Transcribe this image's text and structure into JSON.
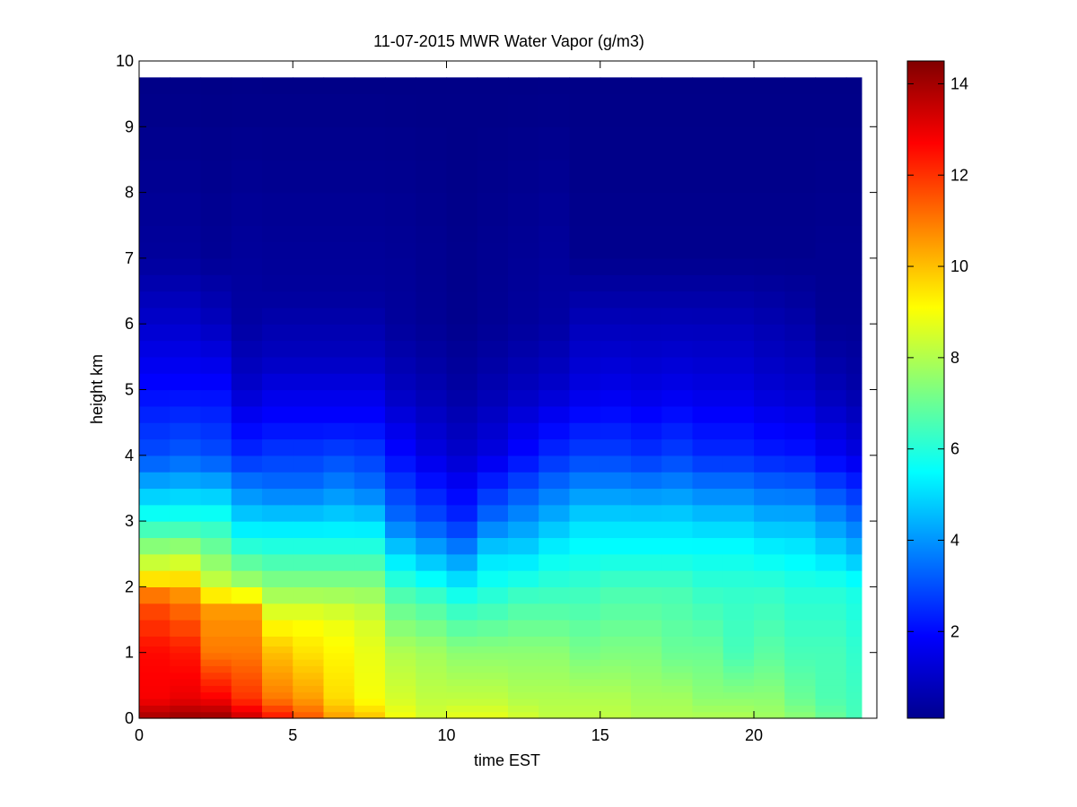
{
  "chart_data": {
    "type": "heatmap",
    "title": "11-07-2015 MWR Water Vapor (g/m3)",
    "xlabel": "time EST",
    "ylabel": "height km",
    "xlim": [
      0,
      24
    ],
    "ylim": [
      0,
      10
    ],
    "x_ticks": [
      0,
      5,
      10,
      15,
      20
    ],
    "y_ticks": [
      0,
      1,
      2,
      3,
      4,
      5,
      6,
      7,
      8,
      9,
      10
    ],
    "colorbar": {
      "range": [
        0.1,
        14.5
      ],
      "ticks": [
        2,
        4,
        6,
        8,
        10,
        12,
        14
      ],
      "colormap": "jet"
    },
    "grid": false,
    "x_bin_edges": [
      0,
      1,
      2,
      3,
      4,
      5,
      6,
      7,
      8,
      9,
      10,
      11,
      12,
      13,
      14,
      15,
      16,
      17,
      18,
      19,
      20,
      21,
      22,
      23,
      23.5
    ],
    "height_levels_km": [
      0,
      0.1,
      0.2,
      0.3,
      0.4,
      0.5,
      0.6,
      0.7,
      0.8,
      0.9,
      1.0,
      1.1,
      1.25,
      1.5,
      1.75,
      2.0,
      2.25,
      2.5,
      2.75,
      3.0,
      3.25,
      3.5,
      3.75,
      4.0,
      4.25,
      4.5,
      4.75,
      5.0,
      5.25,
      5.5,
      5.75,
      6.0,
      6.25,
      6.5,
      6.75,
      7.0,
      7.25,
      7.5,
      8.0,
      8.5,
      9.0,
      9.5,
      9.75
    ],
    "time_columns": [
      {
        "t": 0,
        "profile": [
          [
            0,
            14.0
          ],
          [
            0.3,
            12.8
          ],
          [
            1.0,
            12.6
          ],
          [
            1.8,
            11.5
          ],
          [
            2.2,
            9.0
          ],
          [
            3.0,
            6.0
          ],
          [
            4.0,
            3.0
          ],
          [
            5.0,
            2.0
          ],
          [
            6.0,
            1.2
          ],
          [
            7.0,
            0.5
          ],
          [
            9.75,
            0.2
          ]
        ]
      },
      {
        "t": 1,
        "profile": [
          [
            0,
            14.2
          ],
          [
            0.3,
            13.0
          ],
          [
            1.0,
            12.4
          ],
          [
            1.8,
            11.0
          ],
          [
            2.2,
            9.2
          ],
          [
            3.0,
            6.0
          ],
          [
            4.0,
            3.2
          ],
          [
            5.0,
            2.0
          ],
          [
            6.0,
            1.2
          ],
          [
            7.0,
            0.5
          ],
          [
            9.75,
            0.2
          ]
        ]
      },
      {
        "t": 2,
        "profile": [
          [
            0,
            14.2
          ],
          [
            0.3,
            12.8
          ],
          [
            1.0,
            11.0
          ],
          [
            1.7,
            10.5
          ],
          [
            2.0,
            8.5
          ],
          [
            3.0,
            6.0
          ],
          [
            4.0,
            3.0
          ],
          [
            5.0,
            2.0
          ],
          [
            6.0,
            1.0
          ],
          [
            7.0,
            0.4
          ],
          [
            9.75,
            0.2
          ]
        ]
      },
      {
        "t": 3,
        "profile": [
          [
            0,
            13.5
          ],
          [
            0.3,
            12.0
          ],
          [
            1.0,
            11.0
          ],
          [
            1.7,
            10.5
          ],
          [
            2.0,
            8.0
          ],
          [
            2.8,
            5.5
          ],
          [
            4.0,
            2.5
          ],
          [
            5.0,
            1.2
          ],
          [
            6.0,
            0.6
          ],
          [
            9.75,
            0.2
          ]
        ]
      },
      {
        "t": 4,
        "profile": [
          [
            0,
            12.5
          ],
          [
            0.3,
            11.0
          ],
          [
            1.0,
            10.0
          ],
          [
            1.5,
            9.0
          ],
          [
            2.0,
            7.5
          ],
          [
            2.8,
            5.5
          ],
          [
            3.5,
            3.5
          ],
          [
            4.5,
            2.0
          ],
          [
            5.5,
            1.0
          ],
          [
            6.5,
            0.5
          ],
          [
            9.75,
            0.2
          ]
        ]
      },
      {
        "t": 5,
        "profile": [
          [
            0,
            11.5
          ],
          [
            0.3,
            10.5
          ],
          [
            1.0,
            9.5
          ],
          [
            1.5,
            9.0
          ],
          [
            2.0,
            7.5
          ],
          [
            2.8,
            5.5
          ],
          [
            3.5,
            3.5
          ],
          [
            4.5,
            2.0
          ],
          [
            5.5,
            1.0
          ],
          [
            6.5,
            0.5
          ],
          [
            9.75,
            0.2
          ]
        ]
      },
      {
        "t": 6,
        "profile": [
          [
            0,
            10.5
          ],
          [
            0.3,
            9.6
          ],
          [
            1.0,
            9.2
          ],
          [
            1.5,
            8.8
          ],
          [
            2.0,
            7.5
          ],
          [
            2.8,
            5.5
          ],
          [
            3.5,
            3.8
          ],
          [
            4.5,
            2.0
          ],
          [
            5.5,
            1.0
          ],
          [
            6.5,
            0.5
          ],
          [
            9.75,
            0.2
          ]
        ]
      },
      {
        "t": 7,
        "profile": [
          [
            0,
            10.0
          ],
          [
            0.3,
            9.0
          ],
          [
            1.0,
            8.8
          ],
          [
            1.5,
            8.5
          ],
          [
            2.0,
            7.5
          ],
          [
            2.8,
            5.5
          ],
          [
            3.5,
            3.5
          ],
          [
            4.5,
            2.0
          ],
          [
            5.5,
            1.0
          ],
          [
            6.5,
            0.5
          ],
          [
            9.75,
            0.2
          ]
        ]
      },
      {
        "t": 8,
        "profile": [
          [
            0,
            9.0
          ],
          [
            0.3,
            8.5
          ],
          [
            1.0,
            8.0
          ],
          [
            1.8,
            6.8
          ],
          [
            2.5,
            5.0
          ],
          [
            3.0,
            3.5
          ],
          [
            4.0,
            2.0
          ],
          [
            5.0,
            1.0
          ],
          [
            6.0,
            0.5
          ],
          [
            9.75,
            0.2
          ]
        ]
      },
      {
        "t": 9,
        "profile": [
          [
            0,
            8.5
          ],
          [
            0.3,
            8.2
          ],
          [
            1.0,
            7.8
          ],
          [
            1.8,
            6.5
          ],
          [
            2.3,
            5.0
          ],
          [
            3.0,
            3.0
          ],
          [
            4.0,
            1.5
          ],
          [
            5.0,
            0.8
          ],
          [
            6.0,
            0.4
          ],
          [
            9.75,
            0.2
          ]
        ]
      },
      {
        "t": 10,
        "profile": [
          [
            0,
            8.8
          ],
          [
            0.3,
            8.2
          ],
          [
            1.0,
            7.5
          ],
          [
            1.8,
            6.0
          ],
          [
            2.3,
            4.5
          ],
          [
            3.0,
            2.5
          ],
          [
            4.0,
            1.2
          ],
          [
            5.0,
            0.6
          ],
          [
            6.0,
            0.3
          ],
          [
            9.75,
            0.2
          ]
        ]
      },
      {
        "t": 11,
        "profile": [
          [
            0,
            8.8
          ],
          [
            0.3,
            8.2
          ],
          [
            1.0,
            7.5
          ],
          [
            1.8,
            6.2
          ],
          [
            2.5,
            5.0
          ],
          [
            3.0,
            3.5
          ],
          [
            4.0,
            1.5
          ],
          [
            5.0,
            0.8
          ],
          [
            6.0,
            0.4
          ],
          [
            9.75,
            0.2
          ]
        ]
      },
      {
        "t": 12,
        "profile": [
          [
            0,
            8.5
          ],
          [
            0.3,
            8.0
          ],
          [
            1.0,
            7.5
          ],
          [
            1.8,
            6.5
          ],
          [
            2.5,
            5.0
          ],
          [
            3.0,
            4.0
          ],
          [
            4.0,
            2.0
          ],
          [
            5.0,
            1.0
          ],
          [
            6.0,
            0.5
          ],
          [
            9.75,
            0.2
          ]
        ]
      },
      {
        "t": 13,
        "profile": [
          [
            0,
            8.2
          ],
          [
            0.3,
            8.0
          ],
          [
            1.0,
            7.5
          ],
          [
            1.8,
            6.5
          ],
          [
            2.5,
            5.5
          ],
          [
            3.0,
            4.5
          ],
          [
            4.0,
            2.5
          ],
          [
            5.0,
            1.2
          ],
          [
            6.0,
            0.6
          ],
          [
            9.75,
            0.2
          ]
        ]
      },
      {
        "t": 14,
        "profile": [
          [
            0,
            8.2
          ],
          [
            0.3,
            8.0
          ],
          [
            1.0,
            7.2
          ],
          [
            2.0,
            6.3
          ],
          [
            2.6,
            5.5
          ],
          [
            3.0,
            5.0
          ],
          [
            4.0,
            2.8
          ],
          [
            5.0,
            1.5
          ],
          [
            6.2,
            0.8
          ],
          [
            7.0,
            0.3
          ],
          [
            9.75,
            0.2
          ]
        ]
      },
      {
        "t": 15,
        "profile": [
          [
            0,
            8.2
          ],
          [
            0.3,
            8.0
          ],
          [
            1.0,
            7.3
          ],
          [
            2.0,
            6.5
          ],
          [
            2.6,
            5.5
          ],
          [
            3.0,
            5.0
          ],
          [
            4.0,
            2.8
          ],
          [
            5.0,
            1.6
          ],
          [
            6.2,
            0.8
          ],
          [
            7.0,
            0.3
          ],
          [
            9.75,
            0.2
          ]
        ]
      },
      {
        "t": 16,
        "profile": [
          [
            0,
            8.0
          ],
          [
            0.3,
            7.8
          ],
          [
            1.0,
            7.3
          ],
          [
            2.0,
            6.5
          ],
          [
            2.6,
            5.5
          ],
          [
            3.0,
            5.0
          ],
          [
            4.0,
            2.6
          ],
          [
            5.0,
            1.5
          ],
          [
            6.2,
            0.8
          ],
          [
            7.0,
            0.3
          ],
          [
            9.75,
            0.2
          ]
        ]
      },
      {
        "t": 17,
        "profile": [
          [
            0,
            8.0
          ],
          [
            0.3,
            7.8
          ],
          [
            1.0,
            7.0
          ],
          [
            2.0,
            6.5
          ],
          [
            2.6,
            5.5
          ],
          [
            3.0,
            5.0
          ],
          [
            4.0,
            2.8
          ],
          [
            5.0,
            1.6
          ],
          [
            6.2,
            0.8
          ],
          [
            7.0,
            0.3
          ],
          [
            9.75,
            0.2
          ]
        ]
      },
      {
        "t": 18,
        "profile": [
          [
            0,
            8.0
          ],
          [
            0.3,
            7.5
          ],
          [
            1.0,
            7.0
          ],
          [
            2.0,
            6.2
          ],
          [
            2.6,
            5.5
          ],
          [
            3.0,
            4.8
          ],
          [
            4.0,
            2.5
          ],
          [
            5.0,
            1.5
          ],
          [
            6.2,
            0.8
          ],
          [
            7.0,
            0.3
          ],
          [
            9.75,
            0.2
          ]
        ]
      },
      {
        "t": 19,
        "profile": [
          [
            0,
            8.0
          ],
          [
            0.3,
            7.5
          ],
          [
            1.0,
            6.5
          ],
          [
            2.0,
            6.2
          ],
          [
            2.6,
            5.5
          ],
          [
            3.0,
            4.8
          ],
          [
            4.0,
            2.5
          ],
          [
            5.0,
            1.5
          ],
          [
            6.2,
            0.8
          ],
          [
            7.0,
            0.3
          ],
          [
            9.75,
            0.2
          ]
        ]
      },
      {
        "t": 20,
        "profile": [
          [
            0,
            7.8
          ],
          [
            0.3,
            7.5
          ],
          [
            1.0,
            6.8
          ],
          [
            2.0,
            6.2
          ],
          [
            2.6,
            5.3
          ],
          [
            3.0,
            4.5
          ],
          [
            4.0,
            2.3
          ],
          [
            5.0,
            1.3
          ],
          [
            6.2,
            0.7
          ],
          [
            7.0,
            0.3
          ],
          [
            9.75,
            0.2
          ]
        ]
      },
      {
        "t": 21,
        "profile": [
          [
            0,
            7.5
          ],
          [
            0.3,
            7.0
          ],
          [
            1.0,
            6.5
          ],
          [
            2.0,
            6.0
          ],
          [
            2.6,
            5.2
          ],
          [
            3.0,
            4.5
          ],
          [
            4.0,
            2.2
          ],
          [
            5.0,
            1.2
          ],
          [
            6.2,
            0.6
          ],
          [
            7.0,
            0.3
          ],
          [
            9.75,
            0.2
          ]
        ]
      },
      {
        "t": 22,
        "profile": [
          [
            0,
            7.0
          ],
          [
            0.3,
            6.6
          ],
          [
            1.0,
            6.5
          ],
          [
            2.0,
            6.0
          ],
          [
            2.5,
            5.0
          ],
          [
            3.0,
            4.0
          ],
          [
            4.0,
            1.8
          ],
          [
            5.0,
            0.9
          ],
          [
            6.0,
            0.4
          ],
          [
            9.75,
            0.2
          ]
        ]
      },
      {
        "t": 23,
        "profile": [
          [
            0,
            6.5
          ],
          [
            0.3,
            6.4
          ],
          [
            1.0,
            6.2
          ],
          [
            2.0,
            5.8
          ],
          [
            2.4,
            4.8
          ],
          [
            3.0,
            3.5
          ],
          [
            4.0,
            1.5
          ],
          [
            5.0,
            0.7
          ],
          [
            6.0,
            0.4
          ],
          [
            9.75,
            0.2
          ]
        ]
      }
    ]
  }
}
